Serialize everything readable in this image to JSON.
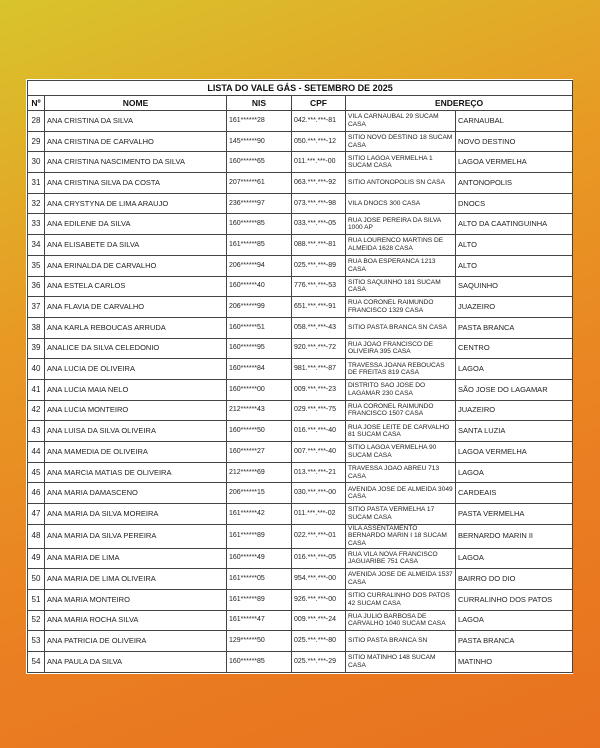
{
  "title": "LISTA DO VALE GÁS - SETEMBRO DE 2025",
  "columns": {
    "num": "Nº",
    "nome": "NOME",
    "nis": "NIS",
    "cpf": "CPF",
    "endereco": "ENDEREÇO"
  },
  "colors": {
    "background_start": "#d8c42c",
    "background_end": "#ea7e22"
  },
  "rows": [
    {
      "num": "28",
      "nome": "ANA CRISTINA DA SILVA",
      "nis": "161******28",
      "cpf": "042.***.***-81",
      "endereco": "VILA CARNAUBAL 29 SUCAM CASA",
      "bairro": "CARNAUBAL"
    },
    {
      "num": "29",
      "nome": "ANA CRISTINA DE CARVALHO",
      "nis": "145******90",
      "cpf": "050.***.***-12",
      "endereco": "SITIO NOVO DESTINO 18 SUCAM CASA",
      "bairro": "NOVO DESTINO"
    },
    {
      "num": "30",
      "nome": "ANA CRISTINA NASCIMENTO DA SILVA",
      "nis": "160******65",
      "cpf": "011.***.***-00",
      "endereco": "SITIO LAGOA VERMELHA 1 SUCAM CASA",
      "bairro": "LAGOA VERMELHA"
    },
    {
      "num": "31",
      "nome": "ANA CRISTINA SILVA DA COSTA",
      "nis": "207******61",
      "cpf": "063.***.***-92",
      "endereco": "SITIO ANTONOPOLIS SN CASA",
      "bairro": "ANTONOPOLIS"
    },
    {
      "num": "32",
      "nome": "ANA CRYSTYNA DE LIMA ARAUJO",
      "nis": "236******97",
      "cpf": "073.***.***-98",
      "endereco": "VILA DNOCS 300 CASA",
      "bairro": "DNOCS"
    },
    {
      "num": "33",
      "nome": "ANA EDILENE DA SILVA",
      "nis": "160******85",
      "cpf": "033.***.***-05",
      "endereco": "RUA JOSE PEREIRA DA SILVA 1000 AP",
      "bairro": "ALTO DA CAATINGUINHA"
    },
    {
      "num": "34",
      "nome": "ANA ELISABETE DA SILVA",
      "nis": "161******85",
      "cpf": "088.***.***-81",
      "endereco": "RUA LOURENCO MARTINS DE ALMEIDA 1628 CASA",
      "bairro": "ALTO"
    },
    {
      "num": "35",
      "nome": "ANA ERINALDA DE CARVALHO",
      "nis": "206******94",
      "cpf": "025.***.***-89",
      "endereco": "RUA BOA ESPERANCA 1213 CASA",
      "bairro": "ALTO"
    },
    {
      "num": "36",
      "nome": "ANA ESTELA CARLOS",
      "nis": "160******40",
      "cpf": "776.***.***-53",
      "endereco": "SITIO SAQUINHO 181 SUCAM CASA",
      "bairro": "SAQUINHO"
    },
    {
      "num": "37",
      "nome": "ANA FLAVIA DE CARVALHO",
      "nis": "206******99",
      "cpf": "651.***.***-91",
      "endereco": "RUA CORONEL RAIMUNDO FRANCISCO 1329 CASA",
      "bairro": "JUAZEIRO"
    },
    {
      "num": "38",
      "nome": "ANA KARLA REBOUCAS ARRUDA",
      "nis": "160******51",
      "cpf": "058.***.***-43",
      "endereco": "SITIO PASTA BRANCA SN CASA",
      "bairro": "PASTA BRANCA"
    },
    {
      "num": "39",
      "nome": "ANALICE DA SILVA CELEDONIO",
      "nis": "160******95",
      "cpf": "920.***.***-72",
      "endereco": "RUA JOAO FRANCISCO DE OLIVEIRA 395 CASA",
      "bairro": "CENTRO"
    },
    {
      "num": "40",
      "nome": "ANA LUCIA DE OLIVEIRA",
      "nis": "160******84",
      "cpf": "981.***.***-87",
      "endereco": "TRAVESSA JOANA REBOUCAS DE FREITAS 819 CASA",
      "bairro": "LAGOA"
    },
    {
      "num": "41",
      "nome": "ANA LUCIA MAIA NELO",
      "nis": "160******00",
      "cpf": "009.***.***-23",
      "endereco": "DISTRITO SAO JOSE DO LAGAMAR 230 CASA",
      "bairro": "SÃO JOSE DO LAGAMAR"
    },
    {
      "num": "42",
      "nome": "ANA LUCIA MONTEIRO",
      "nis": "212******43",
      "cpf": "029.***.***-75",
      "endereco": "RUA CORONEL RAIMUNDO FRANCISCO 1507 CASA",
      "bairro": "JUAZEIRO"
    },
    {
      "num": "43",
      "nome": "ANA LUISA DA SILVA OLIVEIRA",
      "nis": "160******50",
      "cpf": "016.***.***-40",
      "endereco": "RUA JOSE LEITE DE CARVALHO 81 SUCAM CASA",
      "bairro": "SANTA LUZIA"
    },
    {
      "num": "44",
      "nome": "ANA MAMEDIA DE OLIVEIRA",
      "nis": "160******27",
      "cpf": "007.***.***-40",
      "endereco": "SITIO LAGOA VERMELHA 90 SUCAM CASA",
      "bairro": "LAGOA VERMELHA"
    },
    {
      "num": "45",
      "nome": "ANA MARCIA MATIAS DE OLIVEIRA",
      "nis": "212******69",
      "cpf": "013.***.***-21",
      "endereco": "TRAVESSA JOAO ABREU 713 CASA",
      "bairro": "LAGOA"
    },
    {
      "num": "46",
      "nome": "ANA MARIA DAMASCENO",
      "nis": "206******15",
      "cpf": "030.***.***-00",
      "endereco": "AVENIDA JOSE DE ALMEIDA 3049 CASA",
      "bairro": "CARDEAIS"
    },
    {
      "num": "47",
      "nome": "ANA MARIA DA SILVA MOREIRA",
      "nis": "161******42",
      "cpf": "011.***.***-02",
      "endereco": "SITIO PASTA VERMELHA 17 SUCAM CASA",
      "bairro": "PASTA VERMELHA"
    },
    {
      "num": "48",
      "nome": "ANA MARIA DA SILVA PEREIRA",
      "nis": "161******89",
      "cpf": "022.***.***-01",
      "endereco": "VILA ASSENTAMENTO BERNARDO MARIN I 18 SUCAM CASA",
      "bairro": "BERNARDO MARIN II"
    },
    {
      "num": "49",
      "nome": "ANA MARIA DE LIMA",
      "nis": "160******49",
      "cpf": "016.***.***-05",
      "endereco": "RUA VILA NOVA FRANCISCO JAGUARIBE 751 CASA",
      "bairro": "LAGOA"
    },
    {
      "num": "50",
      "nome": "ANA MARIA DE LIMA OLIVEIRA",
      "nis": "161******05",
      "cpf": "954.***.***-00",
      "endereco": "AVENIDA JOSE DE ALMEIDA 1537 CASA",
      "bairro": "BAIRRO DO DIO"
    },
    {
      "num": "51",
      "nome": "ANA MARIA MONTEIRO",
      "nis": "161******89",
      "cpf": "926.***.***-00",
      "endereco": "SITIO CURRALINHO DOS PATOS 42 SUCAM CASA",
      "bairro": "CURRALINHO DOS PATOS"
    },
    {
      "num": "52",
      "nome": "ANA MARIA ROCHA SILVA",
      "nis": "161******47",
      "cpf": "009.***.***-24",
      "endereco": "RUA JULIO BARBOSA DE CARVALHO 1040 SUCAM CASA",
      "bairro": "LAGOA"
    },
    {
      "num": "53",
      "nome": "ANA PATRICIA DE OLIVEIRA",
      "nis": "129******50",
      "cpf": "025.***.***-80",
      "endereco": "SITIO PASTA BRANCA SN",
      "bairro": "PASTA BRANCA"
    },
    {
      "num": "54",
      "nome": "ANA PAULA DA SILVA",
      "nis": "160******85",
      "cpf": "025.***.***-29",
      "endereco": "SITIO MATINHO 148 SUCAM CASA",
      "bairro": "MATINHO"
    }
  ]
}
